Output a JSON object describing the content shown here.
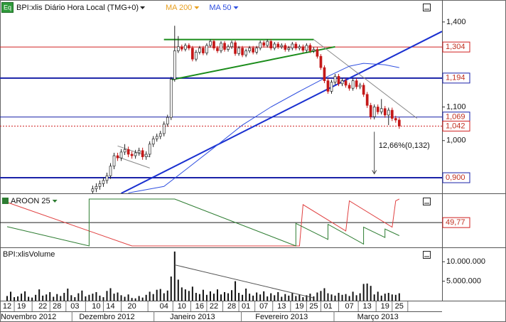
{
  "badge": "Eq",
  "chart_data": [
    {
      "type": "candlestick",
      "name": "BPI:xlis Diário Hora Local (TMG+0)",
      "log_scale": true,
      "xlim": [
        -2,
        122
      ],
      "ylim": [
        861,
        1490
      ],
      "yticks": [
        {
          "value": 1000,
          "label": "1,000"
        },
        {
          "value": 1100,
          "label": "1,100"
        },
        {
          "value": 1200,
          "label": "1,200"
        },
        {
          "value": 1300,
          "label": "1,300"
        },
        {
          "value": 1400,
          "label": "1,400"
        }
      ],
      "up_color": "#ffffff",
      "down_color": "#c41818",
      "x": [
        24,
        25,
        26,
        27,
        28,
        29,
        30,
        31,
        32,
        33,
        34,
        35,
        36,
        37,
        38,
        39,
        40,
        41,
        42,
        43,
        44,
        45,
        46,
        47,
        48,
        49,
        50,
        51,
        52,
        53,
        54,
        55,
        56,
        57,
        58,
        59,
        60,
        61,
        62,
        63,
        64,
        65,
        66,
        67,
        68,
        69,
        70,
        71,
        72,
        73,
        74,
        75,
        76,
        77,
        78,
        79,
        80,
        81,
        82,
        83,
        84,
        85,
        86,
        87,
        88,
        89,
        90,
        91,
        92,
        93,
        94,
        95,
        96,
        97,
        98,
        99,
        100,
        101,
        102,
        103,
        104,
        105,
        106,
        107,
        108,
        109,
        110
      ],
      "open": [
        866,
        872,
        878,
        885,
        893,
        905,
        930,
        958,
        952,
        968,
        975,
        962,
        958,
        966,
        972,
        955,
        962,
        990,
        1005,
        1012,
        1020,
        1048,
        1068,
        1190,
        1290,
        1305,
        1296,
        1310,
        1300,
        1260,
        1285,
        1300,
        1282,
        1310,
        1325,
        1300,
        1290,
        1318,
        1295,
        1305,
        1320,
        1280,
        1300,
        1275,
        1290,
        1300,
        1285,
        1300,
        1320,
        1310,
        1325,
        1300,
        1315,
        1305,
        1310,
        1295,
        1300,
        1315,
        1300,
        1305,
        1292,
        1310,
        1290,
        1295,
        1270,
        1230,
        1185,
        1150,
        1180,
        1200,
        1175,
        1185,
        1170,
        1160,
        1185,
        1165,
        1170,
        1140,
        1105,
        1070,
        1100,
        1085,
        1095,
        1075,
        1090,
        1065,
        1060
      ],
      "high": [
        880,
        886,
        893,
        901,
        913,
        938,
        966,
        966,
        976,
        990,
        983,
        970,
        974,
        980,
        980,
        970,
        998,
        1013,
        1020,
        1028,
        1056,
        1076,
        1198,
        1385,
        1345,
        1313,
        1318,
        1318,
        1308,
        1293,
        1308,
        1308,
        1318,
        1333,
        1333,
        1308,
        1326,
        1326,
        1313,
        1328,
        1328,
        1308,
        1308,
        1298,
        1308,
        1308,
        1308,
        1328,
        1328,
        1333,
        1333,
        1323,
        1323,
        1318,
        1318,
        1308,
        1323,
        1323,
        1313,
        1313,
        1318,
        1318,
        1303,
        1303,
        1278,
        1238,
        1193,
        1188,
        1208,
        1208,
        1193,
        1193,
        1178,
        1193,
        1193,
        1178,
        1178,
        1148,
        1113,
        1108,
        1108,
        1125,
        1103,
        1098,
        1098,
        1073,
        1068
      ],
      "low": [
        858,
        864,
        870,
        877,
        885,
        897,
        922,
        944,
        944,
        960,
        954,
        950,
        950,
        958,
        947,
        947,
        954,
        982,
        997,
        1004,
        1012,
        1040,
        1060,
        1182,
        1282,
        1288,
        1288,
        1292,
        1252,
        1252,
        1277,
        1274,
        1274,
        1302,
        1292,
        1282,
        1282,
        1287,
        1287,
        1297,
        1272,
        1272,
        1267,
        1267,
        1282,
        1277,
        1277,
        1292,
        1302,
        1302,
        1292,
        1292,
        1297,
        1297,
        1287,
        1287,
        1292,
        1292,
        1292,
        1284,
        1284,
        1282,
        1282,
        1262,
        1222,
        1177,
        1142,
        1142,
        1172,
        1167,
        1167,
        1162,
        1152,
        1152,
        1157,
        1157,
        1132,
        1097,
        1062,
        1062,
        1077,
        1077,
        1067,
        1045,
        1057,
        1052,
        1034
      ],
      "close": [
        872,
        878,
        885,
        893,
        905,
        930,
        958,
        952,
        968,
        975,
        962,
        958,
        966,
        972,
        955,
        962,
        990,
        1005,
        1012,
        1020,
        1048,
        1068,
        1190,
        1290,
        1305,
        1296,
        1310,
        1300,
        1260,
        1285,
        1300,
        1282,
        1310,
        1325,
        1300,
        1290,
        1318,
        1295,
        1305,
        1320,
        1280,
        1300,
        1275,
        1290,
        1300,
        1285,
        1300,
        1320,
        1310,
        1325,
        1300,
        1315,
        1305,
        1310,
        1295,
        1300,
        1315,
        1300,
        1305,
        1292,
        1310,
        1290,
        1295,
        1270,
        1230,
        1185,
        1150,
        1180,
        1200,
        1175,
        1185,
        1170,
        1160,
        1185,
        1165,
        1170,
        1140,
        1105,
        1070,
        1100,
        1085,
        1095,
        1075,
        1090,
        1065,
        1060,
        1042
      ],
      "series": [
        {
          "name": "MA 200",
          "color": "#e8a020",
          "x": [],
          "values": []
        },
        {
          "name": "MA 50",
          "color": "#3050e0",
          "x": [
            34,
            44,
            50,
            58,
            66,
            74,
            82,
            90,
            96,
            100,
            106,
            110
          ],
          "values": [
            862,
            878,
            920,
            980,
            1045,
            1100,
            1150,
            1200,
            1235,
            1245,
            1240,
            1230
          ]
        }
      ],
      "level_lines": [
        {
          "value": 1304,
          "label": "1,304",
          "color": "#d02020",
          "style": "solid"
        },
        {
          "value": 1194,
          "label": "1,194",
          "color": "#1a22a8",
          "style": "thick"
        },
        {
          "value": 1069,
          "label": "1,069",
          "color": "#1a22a8",
          "style": "solid"
        },
        {
          "value": 1042,
          "label": "1,042",
          "color": "#d02020",
          "style": "dotted"
        },
        {
          "value": 900,
          "label": "0,900",
          "color": "#1a22a8",
          "style": "thick"
        }
      ],
      "trend_lines": [
        {
          "x": [
            44,
            86
          ],
          "values": [
            1332,
            1332
          ],
          "color": "#1a8c1a"
        },
        {
          "x": [
            46,
            92
          ],
          "values": [
            1188,
            1305
          ],
          "color": "#1a8c1a"
        },
        {
          "x": [
            32,
            122
          ],
          "values": [
            861,
            1363
          ],
          "color": "#1a30d0"
        },
        {
          "x": [
            86,
            115
          ],
          "values": [
            1332,
            1065
          ],
          "color": "#888888"
        },
        {
          "x": [
            31,
            40
          ],
          "values": [
            985,
            955
          ],
          "color": "#888888"
        },
        {
          "x": [
            31,
            40
          ],
          "values": [
            955,
            925
          ],
          "color": "#888888"
        }
      ],
      "measure": {
        "x": 103,
        "from": 1042,
        "to": 910,
        "label": "12,66%(0,132)"
      }
    },
    {
      "type": "line",
      "xlim": [
        -2,
        122
      ],
      "ylim": [
        0,
        100
      ],
      "level": {
        "value": 49.77,
        "label": "49,77"
      },
      "series": [
        {
          "name": "AROON 25",
          "color": "#e04040",
          "x": [
            0,
            35,
            82,
            83,
            95,
            96,
            108,
            109,
            110
          ],
          "values": [
            93,
            0,
            0,
            88,
            32,
            96,
            40,
            96,
            100
          ]
        },
        {
          "color": "#2e7d32",
          "x": [
            0,
            23,
            23,
            47,
            81,
            81,
            90,
            90,
            100,
            100,
            106,
            106,
            110
          ],
          "values": [
            41,
            0,
            100,
            100,
            0,
            48,
            14,
            46,
            4,
            40,
            18,
            36,
            22
          ]
        }
      ]
    },
    {
      "type": "bar",
      "name": "BPI:xlisVolume",
      "color": "#111111",
      "xlim": [
        -2,
        122
      ],
      "ylim": [
        0,
        13500000
      ],
      "yticks": [
        {
          "value": 5000000,
          "label": "5.000.000"
        },
        {
          "value": 10000000,
          "label": "10.000.000"
        }
      ],
      "values": [
        1200000,
        2300000,
        900000,
        1100000,
        1800000,
        2400000,
        1000000,
        800000,
        1500000,
        2900000,
        1300000,
        1600000,
        2200000,
        1000000,
        1700000,
        1200000,
        2000000,
        3100000,
        1400000,
        900000,
        1900000,
        2600000,
        1100000,
        1500000,
        1800000,
        2200000,
        1300000,
        900000,
        2500000,
        3200000,
        1800000,
        2100000,
        1400000,
        1000000,
        1600000,
        700000,
        600000,
        1200000,
        800000,
        1500000,
        2300000,
        1700000,
        2800000,
        3000000,
        1900000,
        2600000,
        6200000,
        12600000,
        5400000,
        3400000,
        2900000,
        2500000,
        3600000,
        2000000,
        1700000,
        2800000,
        1500000,
        2400000,
        1800000,
        2900000,
        1600000,
        2200000,
        1900000,
        2700000,
        5000000,
        2000000,
        1500000,
        3100000,
        1800000,
        1300000,
        2100000,
        1600000,
        2400000,
        1100000,
        1900000,
        1400000,
        2200000,
        1000000,
        1700000,
        1300000,
        2000000,
        1200000,
        1600000,
        900000,
        1400000,
        1800000,
        1100000,
        2100000,
        2500000,
        3200000,
        1900000,
        1600000,
        1300000,
        2000000,
        1500000,
        1700000,
        1200000,
        2300000,
        1400000,
        1900000,
        4300000,
        4400000,
        3800000,
        1600000,
        2300000,
        1300000,
        1800000,
        2000000,
        1600000,
        1500000,
        1900000
      ],
      "trend_lines": [
        {
          "x": [
            47,
            86
          ],
          "values": [
            9200000,
            700000
          ],
          "color": "#555555"
        }
      ],
      "xticks": [
        {
          "value": 0,
          "label": "12"
        },
        {
          "value": 4,
          "label": "19"
        },
        {
          "value": 10,
          "label": "22"
        },
        {
          "value": 14,
          "label": "28"
        },
        {
          "value": 19,
          "label": "03"
        },
        {
          "value": 25,
          "label": "10"
        },
        {
          "value": 29,
          "label": "14"
        },
        {
          "value": 35,
          "label": "20"
        },
        {
          "value": 44,
          "label": "04"
        },
        {
          "value": 49,
          "label": "10"
        },
        {
          "value": 54,
          "label": "16"
        },
        {
          "value": 58,
          "label": "22"
        },
        {
          "value": 63,
          "label": "28"
        },
        {
          "value": 67,
          "label": "01"
        },
        {
          "value": 72,
          "label": "07"
        },
        {
          "value": 77,
          "label": "13"
        },
        {
          "value": 82,
          "label": "19"
        },
        {
          "value": 86,
          "label": "25"
        },
        {
          "value": 90,
          "label": "01"
        },
        {
          "value": 96,
          "label": "07"
        },
        {
          "value": 101,
          "label": "13"
        },
        {
          "value": 106,
          "label": "19"
        },
        {
          "value": 110,
          "label": "25"
        }
      ],
      "month_ticks": [
        {
          "value": 6,
          "label": "Novembro 2012"
        },
        {
          "value": 28,
          "label": "Dezembro 2012"
        },
        {
          "value": 52,
          "label": "Janeiro 2013"
        },
        {
          "value": 77,
          "label": "Fevereiro 2013"
        },
        {
          "value": 104,
          "label": "Março 2013"
        }
      ]
    }
  ]
}
